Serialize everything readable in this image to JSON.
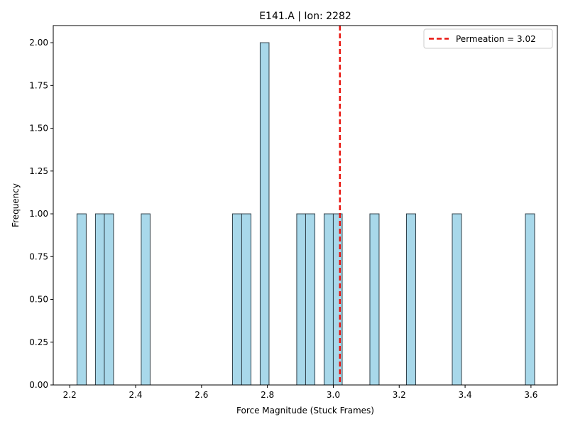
{
  "chart_data": {
    "type": "bar",
    "title": "E141.A | Ion: 2282",
    "xlabel": "Force Magnitude (Stuck Frames)",
    "ylabel": "Frequency",
    "xlim": [
      2.15,
      3.68
    ],
    "ylim": [
      0.0,
      2.1
    ],
    "xticks": [
      "2.2",
      "2.4",
      "2.6",
      "2.8",
      "3.0",
      "3.2",
      "3.4",
      "3.6"
    ],
    "xtick_values": [
      2.2,
      2.4,
      2.6,
      2.8,
      3.0,
      3.2,
      3.4,
      3.6
    ],
    "yticks": [
      "0.00",
      "0.25",
      "0.50",
      "0.75",
      "1.00",
      "1.25",
      "1.50",
      "1.75",
      "2.00"
    ],
    "ytick_values": [
      0.0,
      0.25,
      0.5,
      0.75,
      1.0,
      1.25,
      1.5,
      1.75,
      2.0
    ],
    "bins": [
      {
        "x0": 2.222,
        "x1": 2.25,
        "count": 1
      },
      {
        "x0": 2.278,
        "x1": 2.305,
        "count": 1
      },
      {
        "x0": 2.305,
        "x1": 2.333,
        "count": 1
      },
      {
        "x0": 2.417,
        "x1": 2.444,
        "count": 1
      },
      {
        "x0": 2.694,
        "x1": 2.722,
        "count": 1
      },
      {
        "x0": 2.722,
        "x1": 2.75,
        "count": 1
      },
      {
        "x0": 2.778,
        "x1": 2.805,
        "count": 2
      },
      {
        "x0": 2.889,
        "x1": 2.916,
        "count": 1
      },
      {
        "x0": 2.916,
        "x1": 2.944,
        "count": 1
      },
      {
        "x0": 2.972,
        "x1": 3.0,
        "count": 1
      },
      {
        "x0": 3.0,
        "x1": 3.027,
        "count": 1
      },
      {
        "x0": 3.111,
        "x1": 3.139,
        "count": 1
      },
      {
        "x0": 3.222,
        "x1": 3.25,
        "count": 1
      },
      {
        "x0": 3.361,
        "x1": 3.389,
        "count": 1
      },
      {
        "x0": 3.583,
        "x1": 3.611,
        "count": 1
      }
    ],
    "reference_line": {
      "x": 3.02,
      "label": "Permeation = 3.02",
      "color": "#e8140f",
      "style": "dashed"
    },
    "bar_fill": "#a8d8ea",
    "bar_edge": "#2f3f48",
    "legend_position": "top-right",
    "grid": false
  }
}
